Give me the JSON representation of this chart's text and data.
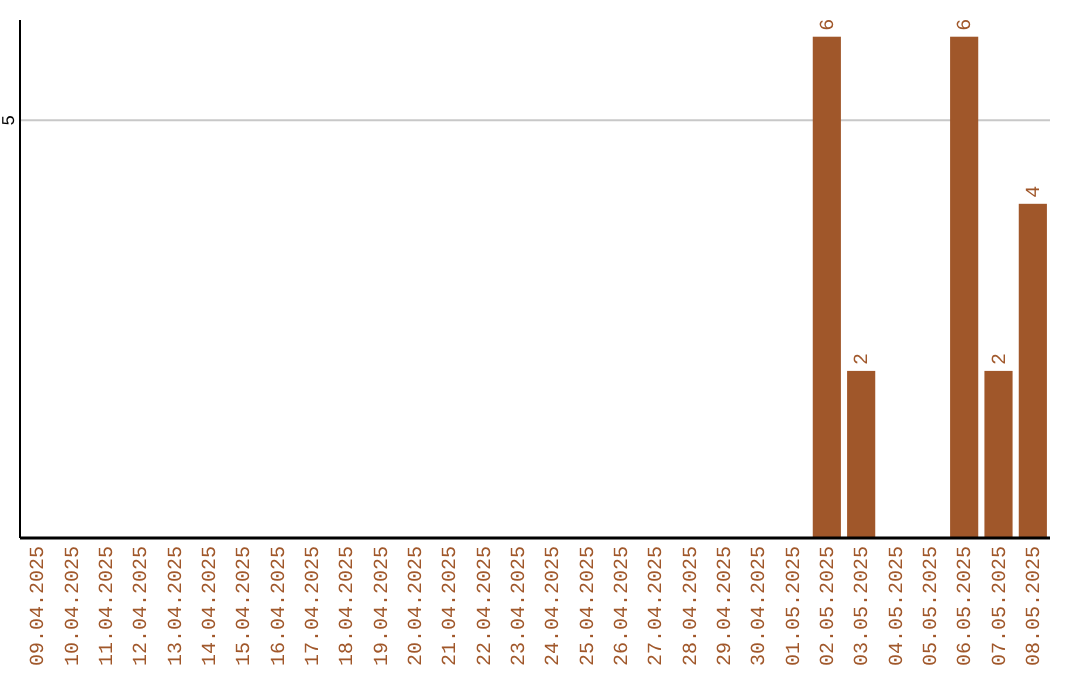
{
  "chart_data": {
    "type": "bar",
    "categories": [
      "09.04.2025",
      "10.04.2025",
      "11.04.2025",
      "12.04.2025",
      "13.04.2025",
      "14.04.2025",
      "15.04.2025",
      "16.04.2025",
      "17.04.2025",
      "18.04.2025",
      "19.04.2025",
      "20.04.2025",
      "21.04.2025",
      "22.04.2025",
      "23.04.2025",
      "24.04.2025",
      "25.04.2025",
      "26.04.2025",
      "27.04.2025",
      "28.04.2025",
      "29.04.2025",
      "30.04.2025",
      "01.05.2025",
      "02.05.2025",
      "03.05.2025",
      "04.05.2025",
      "05.05.2025",
      "06.05.2025",
      "07.05.2025",
      "08.05.2025"
    ],
    "values": [
      null,
      null,
      null,
      null,
      null,
      null,
      null,
      null,
      null,
      null,
      null,
      null,
      null,
      null,
      null,
      null,
      null,
      null,
      null,
      null,
      null,
      null,
      null,
      6,
      2,
      null,
      null,
      6,
      2,
      4
    ],
    "color": "#a0572a",
    "ylim": [
      0,
      6.2
    ],
    "yticks": [
      5
    ],
    "grid": "y",
    "data_labels": true
  }
}
